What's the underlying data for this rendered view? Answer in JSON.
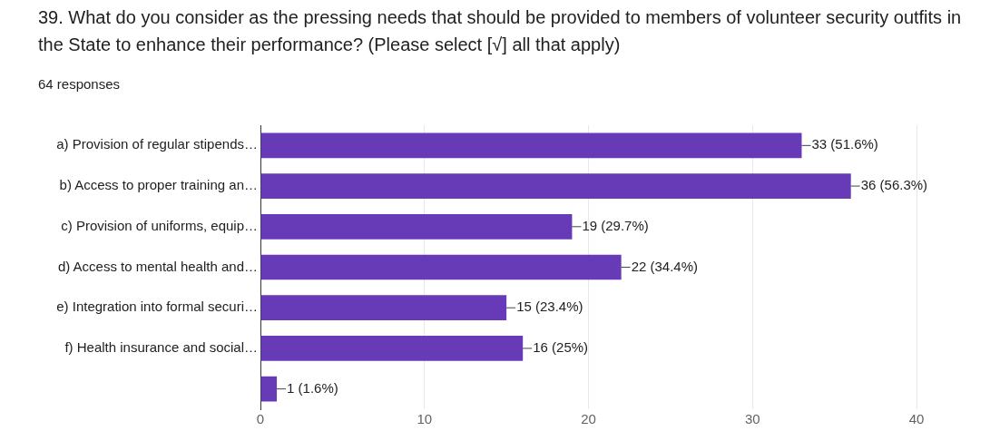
{
  "chart_data": {
    "type": "bar",
    "orientation": "horizontal",
    "title": "39. What do you consider as the pressing needs that should be provided to members of volunteer security outfits in the State to enhance their performance? (Please select [√] all that apply)",
    "subtitle": "64 responses",
    "categories": [
      "a) Provision of regular stipends…",
      "b) Access to proper training an…",
      "c) Provision of uniforms, equip…",
      "d) Access to mental health and…",
      "e) Integration into formal securi…",
      "f) Health insurance and social…",
      null
    ],
    "values": [
      33,
      36,
      19,
      22,
      15,
      16,
      1
    ],
    "value_labels": [
      "33 (51.6%)",
      "36 (56.3%)",
      "19 (29.7%)",
      "22 (34.4%)",
      "15 (23.4%)",
      "16 (25%)",
      "1 (1.6%)"
    ],
    "color": "#673ab7",
    "xlim": [
      0,
      40
    ],
    "xticks": [
      0,
      10,
      20,
      30,
      40
    ],
    "grid": "x"
  }
}
